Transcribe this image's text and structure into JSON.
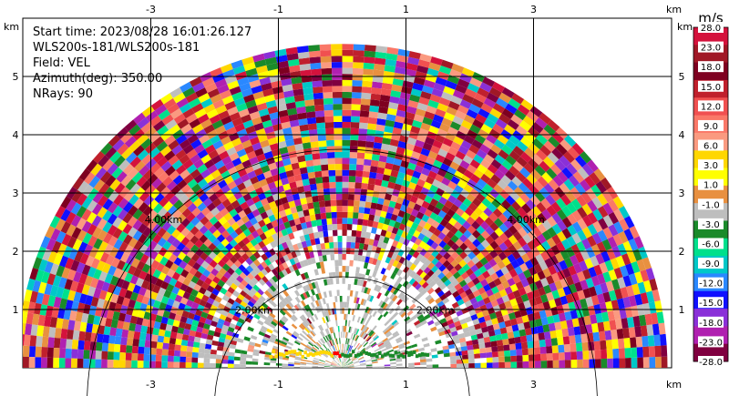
{
  "info": {
    "start_time": "Start time: 2023/08/28 16:01:26.127",
    "site": "WLS200s-181/WLS200s-181",
    "field": "Field: VEL",
    "azimuth": "Azimuth(deg): 350.00",
    "nrays": "NRays: 90"
  },
  "chart_data": {
    "type": "heatmap",
    "subtype": "RHI range-height scan",
    "x_unit": "km",
    "y_unit": "km",
    "xlim": [
      -4.1,
      4.3
    ],
    "ylim": [
      0,
      5.9
    ],
    "max_range_km": 5.1,
    "x_ticks": [
      -3,
      -1,
      1,
      3
    ],
    "x_tick_labels": [
      "-3",
      "-1",
      "1",
      "3"
    ],
    "y_ticks": [
      1,
      2,
      3,
      4,
      5
    ],
    "y_tick_labels": [
      "1",
      "2",
      "3",
      "4",
      "5"
    ],
    "range_rings": [
      {
        "range_km": 2,
        "label": "2.00km"
      },
      {
        "range_km": 4,
        "label": "4.00km"
      }
    ],
    "grid": true,
    "colorbar": {
      "unit": "m/s",
      "ticks": [
        "28.0",
        "23.0",
        "18.0",
        "15.0",
        "12.0",
        "9.0",
        "6.0",
        "3.0",
        "1.0",
        "-1.0",
        "-3.0",
        "-6.0",
        "-9.0",
        "-12.0",
        "-15.0",
        "-18.0",
        "-23.0",
        "-28.0"
      ],
      "colors": [
        "#d4123c",
        "#a01826",
        "#7e0020",
        "#c0202c",
        "#f05050",
        "#fa7868",
        "#fa9a80",
        "#ffd700",
        "#ffff00",
        "#e89040",
        "#bebebe",
        "#1a8a2a",
        "#00e08c",
        "#00c8c8",
        "#2a88ff",
        "#1010ff",
        "#8a30d8",
        "#b020b0",
        "#800040"
      ]
    }
  }
}
